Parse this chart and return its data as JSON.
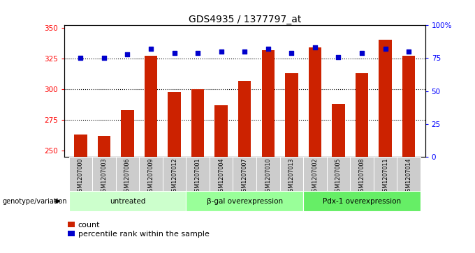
{
  "title": "GDS4935 / 1377797_at",
  "samples": [
    "GSM1207000",
    "GSM1207003",
    "GSM1207006",
    "GSM1207009",
    "GSM1207012",
    "GSM1207001",
    "GSM1207004",
    "GSM1207007",
    "GSM1207010",
    "GSM1207013",
    "GSM1207002",
    "GSM1207005",
    "GSM1207008",
    "GSM1207011",
    "GSM1207014"
  ],
  "counts": [
    263,
    262,
    283,
    327,
    298,
    300,
    287,
    307,
    332,
    313,
    334,
    288,
    313,
    340,
    327
  ],
  "percentiles": [
    75,
    75,
    78,
    82,
    79,
    79,
    80,
    80,
    82,
    79,
    83,
    76,
    79,
    82,
    80
  ],
  "groups": [
    {
      "label": "untreated",
      "start": 0,
      "end": 5,
      "color": "#ccffcc"
    },
    {
      "label": "β-gal overexpression",
      "start": 5,
      "end": 10,
      "color": "#99ff99"
    },
    {
      "label": "Pdx-1 overexpression",
      "start": 10,
      "end": 15,
      "color": "#66ee66"
    }
  ],
  "bar_color": "#cc2200",
  "dot_color": "#0000cc",
  "ylim_left": [
    245,
    352
  ],
  "ylim_right": [
    0,
    100
  ],
  "yticks_left": [
    250,
    275,
    300,
    325,
    350
  ],
  "yticks_right": [
    0,
    25,
    50,
    75,
    100
  ],
  "yticklabels_right": [
    "0",
    "25",
    "50",
    "75",
    "100%"
  ],
  "grid_values": [
    275,
    300,
    325
  ],
  "bg_color": "#ffffff",
  "sample_box_color": "#cccccc",
  "xlabel_area_label": "genotype/variation",
  "legend_count_label": "count",
  "legend_pct_label": "percentile rank within the sample"
}
